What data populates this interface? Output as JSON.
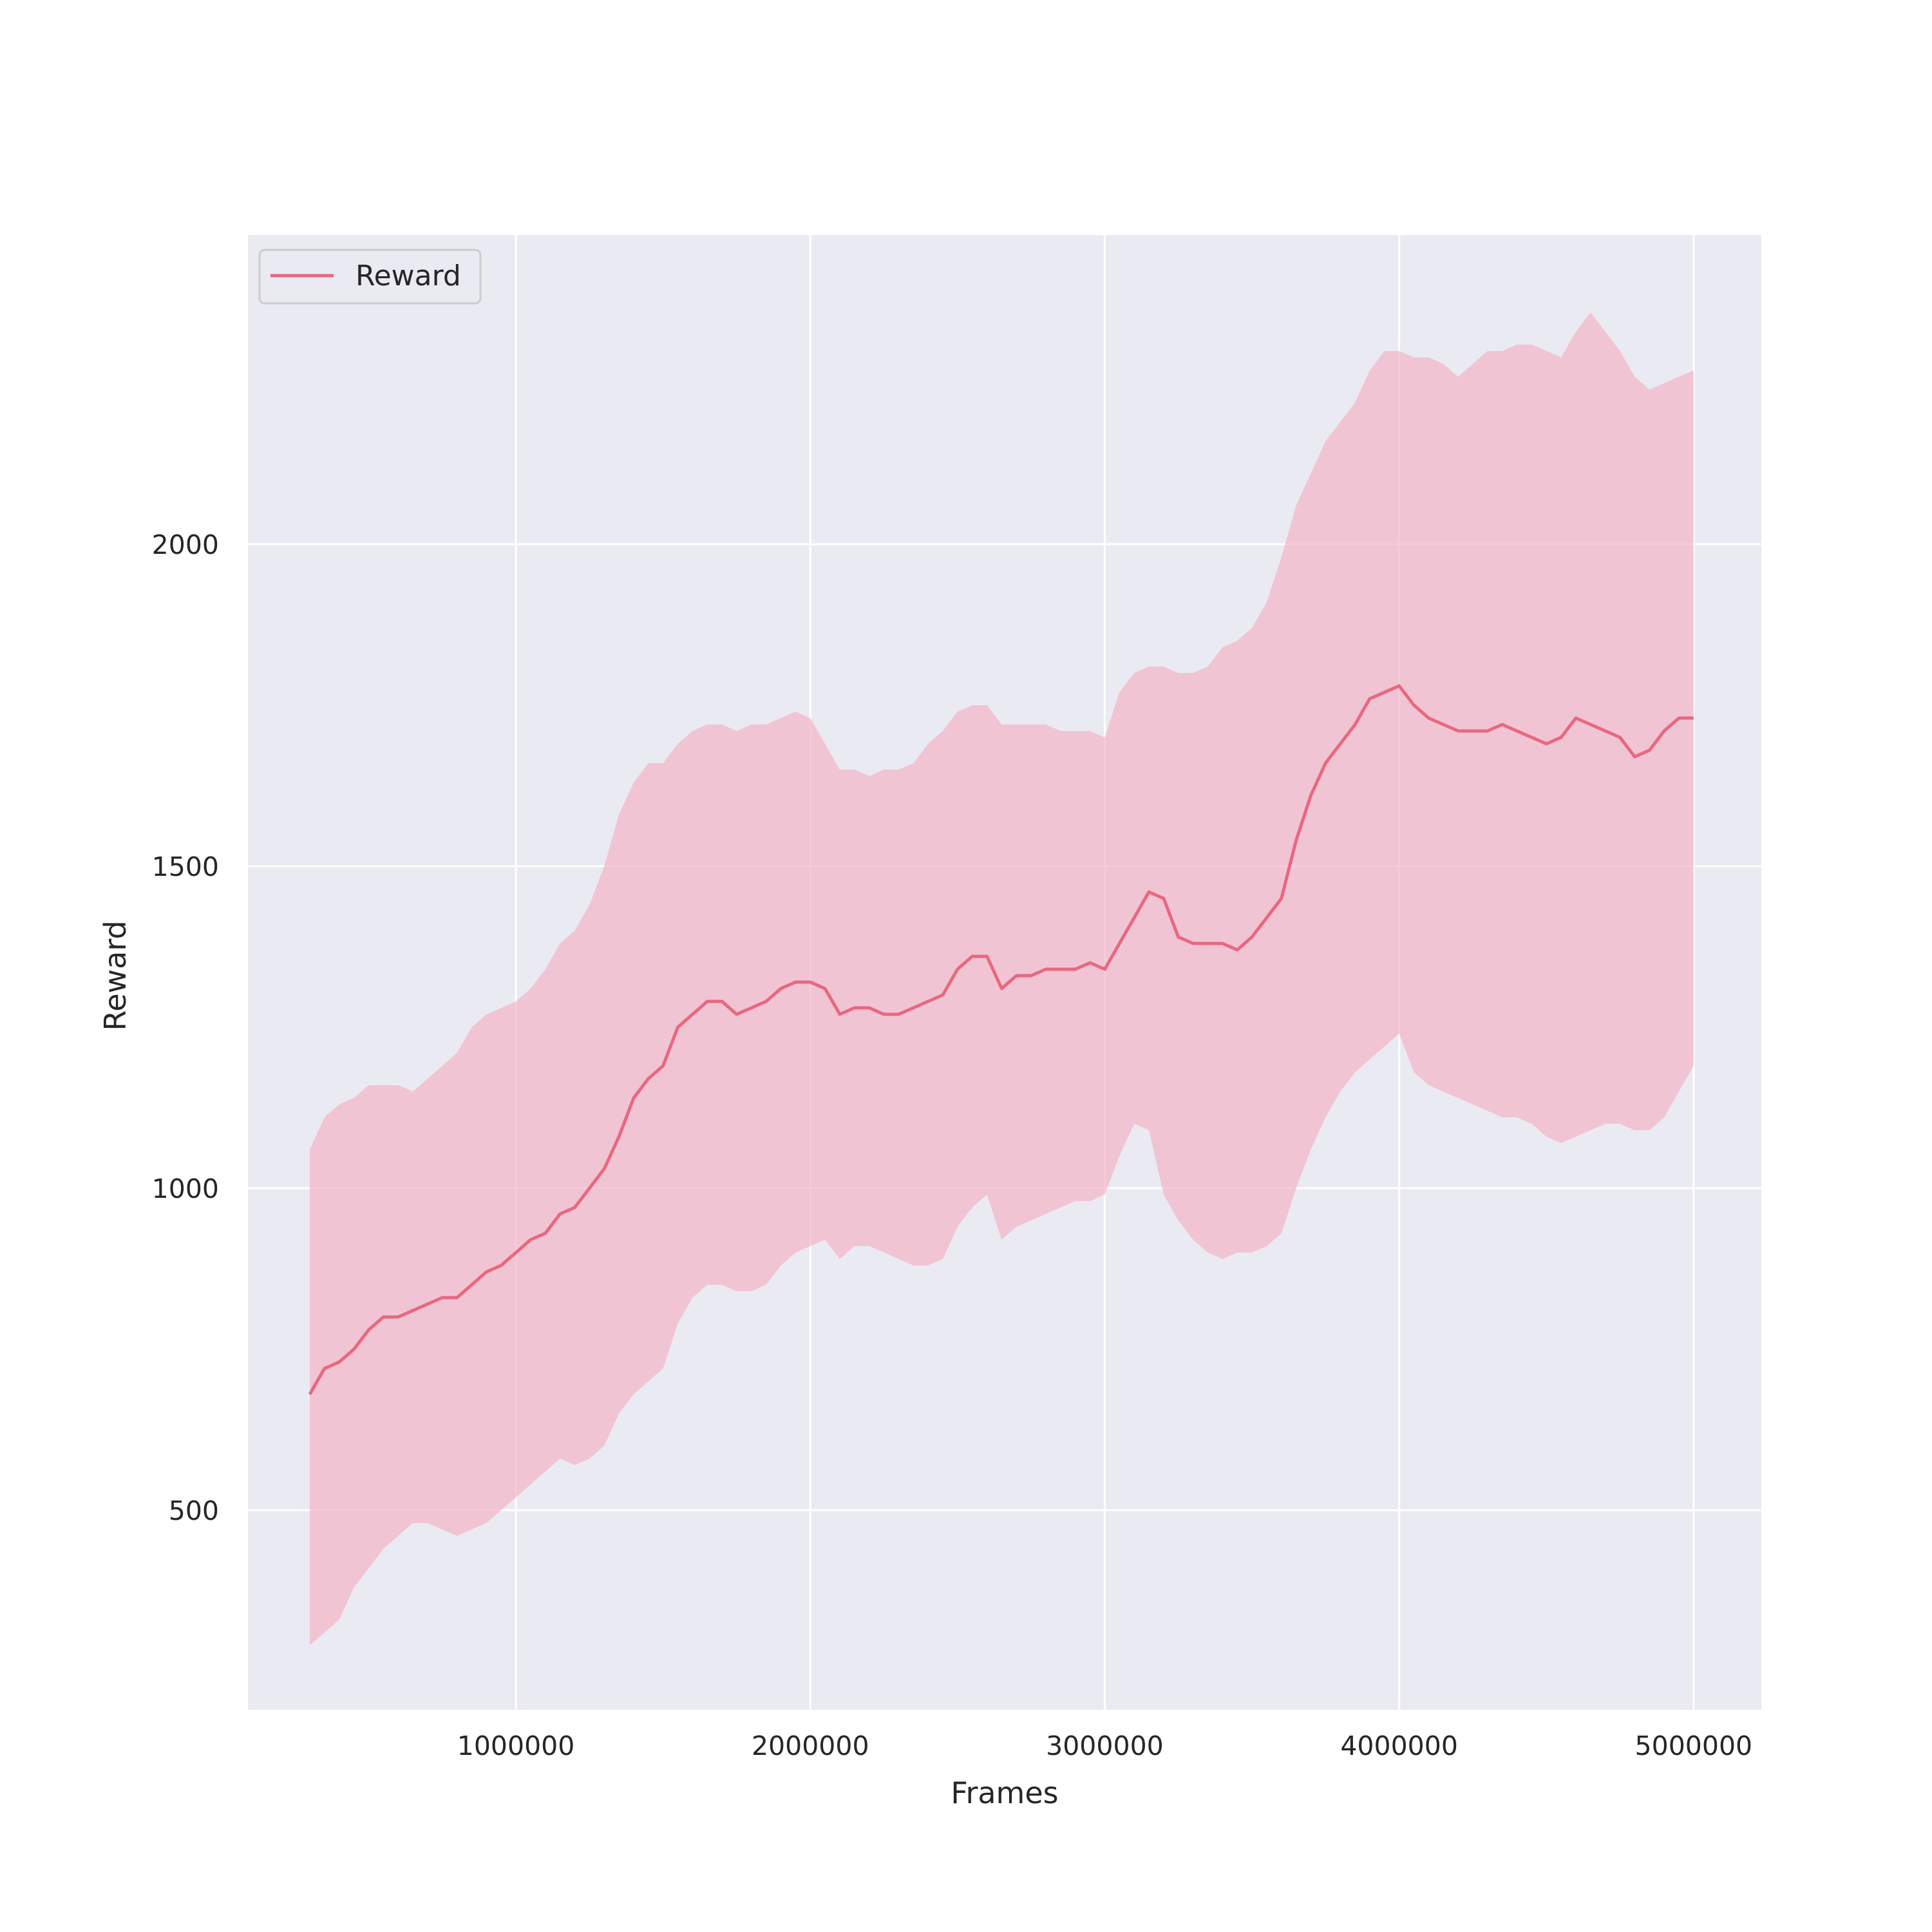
{
  "chart_data": {
    "type": "line",
    "xlabel": "Frames",
    "ylabel": "Reward",
    "xlim": [
      90000,
      5230000
    ],
    "ylim": [
      190,
      2480
    ],
    "xticks": [
      1000000,
      2000000,
      3000000,
      4000000,
      5000000
    ],
    "yticks": [
      500,
      1000,
      1500,
      2000
    ],
    "xtick_labels": [
      "1000000",
      "2000000",
      "3000000",
      "4000000",
      "5000000"
    ],
    "ytick_labels": [
      "500",
      "1000",
      "1500",
      "2000"
    ],
    "grid": true,
    "legend": {
      "position": "top-left",
      "entries": [
        "Reward"
      ]
    },
    "colors": {
      "line": "#e8687f",
      "band": "#f4b4c8",
      "plot_bg": "#eaeaf2",
      "grid": "#ffffff"
    },
    "series": [
      {
        "name": "Reward",
        "x": [
          300000,
          350000,
          400000,
          450000,
          500000,
          550000,
          600000,
          650000,
          700000,
          750000,
          800000,
          850000,
          900000,
          950000,
          1000000,
          1050000,
          1100000,
          1150000,
          1200000,
          1250000,
          1300000,
          1350000,
          1400000,
          1450000,
          1500000,
          1550000,
          1600000,
          1650000,
          1700000,
          1750000,
          1800000,
          1850000,
          1900000,
          1950000,
          2000000,
          2050000,
          2100000,
          2150000,
          2200000,
          2250000,
          2300000,
          2350000,
          2400000,
          2450000,
          2500000,
          2550000,
          2600000,
          2650000,
          2700000,
          2750000,
          2800000,
          2850000,
          2900000,
          2950000,
          3000000,
          3050000,
          3100000,
          3150000,
          3200000,
          3250000,
          3300000,
          3350000,
          3400000,
          3450000,
          3500000,
          3550000,
          3600000,
          3650000,
          3700000,
          3750000,
          3800000,
          3850000,
          3900000,
          3950000,
          4000000,
          4050000,
          4100000,
          4150000,
          4200000,
          4250000,
          4300000,
          4350000,
          4400000,
          4450000,
          4500000,
          4550000,
          4600000,
          4650000,
          4700000,
          4750000,
          4800000,
          4850000,
          4900000,
          4950000,
          5000000
        ],
        "mean": [
          680,
          720,
          730,
          750,
          780,
          800,
          800,
          810,
          820,
          830,
          830,
          850,
          870,
          880,
          900,
          920,
          930,
          960,
          970,
          1000,
          1030,
          1080,
          1140,
          1170,
          1190,
          1250,
          1270,
          1290,
          1290,
          1270,
          1280,
          1290,
          1310,
          1320,
          1320,
          1310,
          1270,
          1280,
          1280,
          1270,
          1270,
          1280,
          1290,
          1300,
          1340,
          1360,
          1360,
          1310,
          1330,
          1330,
          1340,
          1340,
          1340,
          1350,
          1340,
          1380,
          1420,
          1460,
          1450,
          1390,
          1380,
          1380,
          1380,
          1370,
          1390,
          1420,
          1450,
          1540,
          1610,
          1660,
          1690,
          1720,
          1760,
          1770,
          1780,
          1750,
          1730,
          1720,
          1710,
          1710,
          1710,
          1720,
          1710,
          1700,
          1690,
          1700,
          1730,
          1720,
          1710,
          1700,
          1670,
          1680,
          1710,
          1730,
          1730
        ],
        "upper": [
          1060,
          1110,
          1130,
          1140,
          1160,
          1160,
          1160,
          1150,
          1170,
          1190,
          1210,
          1250,
          1270,
          1280,
          1290,
          1310,
          1340,
          1380,
          1400,
          1440,
          1500,
          1580,
          1630,
          1660,
          1660,
          1690,
          1710,
          1720,
          1720,
          1710,
          1720,
          1720,
          1730,
          1740,
          1730,
          1690,
          1650,
          1650,
          1640,
          1650,
          1650,
          1660,
          1690,
          1710,
          1740,
          1750,
          1750,
          1720,
          1720,
          1720,
          1720,
          1710,
          1710,
          1710,
          1700,
          1770,
          1800,
          1810,
          1810,
          1800,
          1800,
          1810,
          1840,
          1850,
          1870,
          1910,
          1980,
          2060,
          2110,
          2160,
          2190,
          2220,
          2270,
          2300,
          2300,
          2290,
          2290,
          2280,
          2260,
          2280,
          2300,
          2300,
          2310,
          2310,
          2300,
          2290,
          2330,
          2360,
          2330,
          2300,
          2260,
          2240,
          2250,
          2260,
          2270
        ],
        "lower": [
          290,
          310,
          330,
          380,
          410,
          440,
          460,
          480,
          480,
          470,
          460,
          470,
          480,
          500,
          520,
          540,
          560,
          580,
          570,
          580,
          600,
          650,
          680,
          700,
          720,
          790,
          830,
          850,
          850,
          840,
          840,
          850,
          880,
          900,
          910,
          920,
          890,
          910,
          910,
          900,
          890,
          880,
          880,
          890,
          940,
          970,
          990,
          920,
          940,
          950,
          960,
          970,
          980,
          980,
          990,
          1050,
          1100,
          1090,
          990,
          950,
          920,
          900,
          890,
          900,
          900,
          910,
          930,
          1000,
          1060,
          1110,
          1150,
          1180,
          1200,
          1220,
          1240,
          1180,
          1160,
          1150,
          1140,
          1130,
          1120,
          1110,
          1110,
          1100,
          1080,
          1070,
          1080,
          1090,
          1100,
          1100,
          1090,
          1090,
          1110,
          1150,
          1190
        ]
      }
    ]
  }
}
